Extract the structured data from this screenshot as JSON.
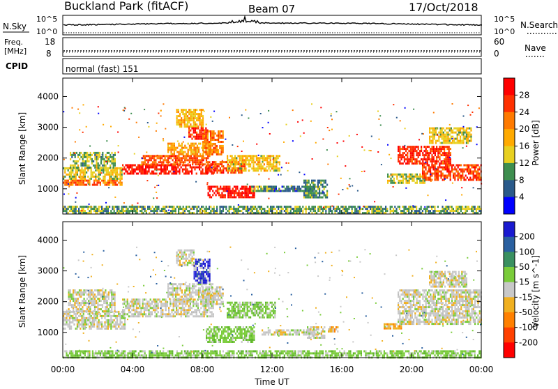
{
  "header": {
    "station": "Buckland Park (fitACF)",
    "beam": "Beam 07",
    "date": "17/Oct/2018"
  },
  "strips": {
    "nsky_label": "N.Sky",
    "nsky_ticks": [
      "10^5",
      "10^0"
    ],
    "nsearch_label": "N.Search",
    "nsearch_ticks": [
      "10^5",
      "10^0"
    ],
    "freq_label_line1": "Freq.",
    "freq_label_line2": "[MHz]",
    "freq_ticks": [
      "18",
      "8"
    ],
    "nave_label": "Nave",
    "nave_ticks": [
      "60",
      "0"
    ],
    "cpid_label": "CPID",
    "cpid_value": "normal (fast) 151"
  },
  "chart_data": [
    {
      "type": "heatmap",
      "name": "power",
      "ylabel": "Slant Range [km]",
      "yticks": [
        "4000",
        "3000",
        "2000",
        "1000"
      ],
      "ylim": [
        180,
        4600
      ],
      "xlim": [
        0,
        24
      ],
      "colorbar_label": "Power [dB]",
      "colorbar_ticks": [
        "28",
        "24",
        "20",
        "16",
        "12",
        "8",
        "4"
      ],
      "colorbar_colors": [
        "#ff0000",
        "#ff3000",
        "#ff7a00",
        "#ffaa00",
        "#e8d020",
        "#3e8e4f",
        "#2a5a8a",
        "#0000ff"
      ],
      "patches": [
        {
          "t0": 0.0,
          "t1": 3.6,
          "r0": 1100,
          "r1": 1300,
          "level": 0.75
        },
        {
          "t0": 0.0,
          "t1": 3.4,
          "r0": 1300,
          "r1": 1700,
          "level": 0.45
        },
        {
          "t0": 0.4,
          "t1": 3.0,
          "r0": 1700,
          "r1": 2200,
          "level": 0.35
        },
        {
          "t0": 3.4,
          "t1": 8.6,
          "r0": 1500,
          "r1": 1800,
          "level": 0.95
        },
        {
          "t0": 4.5,
          "t1": 8.4,
          "r0": 1800,
          "r1": 2100,
          "level": 0.8
        },
        {
          "t0": 6.0,
          "t1": 8.6,
          "r0": 2100,
          "r1": 2500,
          "level": 0.6
        },
        {
          "t0": 6.5,
          "t1": 8.0,
          "r0": 3000,
          "r1": 3600,
          "level": 0.55
        },
        {
          "t0": 7.2,
          "t1": 8.3,
          "r0": 2600,
          "r1": 3000,
          "level": 0.9
        },
        {
          "t0": 8.0,
          "t1": 9.2,
          "r0": 2100,
          "r1": 2900,
          "level": 0.7
        },
        {
          "t0": 8.2,
          "t1": 10.4,
          "r0": 1500,
          "r1": 1900,
          "level": 0.85
        },
        {
          "t0": 8.3,
          "t1": 11.0,
          "r0": 700,
          "r1": 1100,
          "level": 0.97
        },
        {
          "t0": 9.4,
          "t1": 12.4,
          "r0": 1600,
          "r1": 2100,
          "level": 0.5
        },
        {
          "t0": 10.8,
          "t1": 12.2,
          "r0": 900,
          "r1": 1100,
          "level": 0.3
        },
        {
          "t0": 11.4,
          "t1": 14.4,
          "r0": 950,
          "r1": 1100,
          "level": 0.18
        },
        {
          "t0": 13.8,
          "t1": 15.2,
          "r0": 700,
          "r1": 1300,
          "level": 0.25
        },
        {
          "t0": 18.6,
          "t1": 20.8,
          "r0": 1200,
          "r1": 1500,
          "level": 0.4
        },
        {
          "t0": 19.2,
          "t1": 22.2,
          "r0": 1800,
          "r1": 2400,
          "level": 0.9
        },
        {
          "t0": 20.6,
          "t1": 24.0,
          "r0": 1300,
          "r1": 1800,
          "level": 0.85
        },
        {
          "t0": 21.0,
          "t1": 23.4,
          "r0": 2500,
          "r1": 3000,
          "level": 0.45
        },
        {
          "t0": 0.0,
          "t1": 24.0,
          "r0": 200,
          "r1": 450,
          "level": 0.3
        }
      ]
    },
    {
      "type": "heatmap",
      "name": "velocity",
      "ylabel": "Slant Range [km]",
      "yticks": [
        "4000",
        "3000",
        "2000",
        "1000"
      ],
      "ylim": [
        180,
        4600
      ],
      "xlim": [
        0,
        24
      ],
      "xticks": [
        "00:00",
        "04:00",
        "08:00",
        "12:00",
        "16:00",
        "20:00",
        "00:00"
      ],
      "xlabel": "Time UT",
      "colorbar_label": "Velocity [m s^-1]",
      "colorbar_ticks": [
        "200",
        "100",
        "50",
        "15",
        "-15",
        "-50",
        "-100",
        "-200"
      ],
      "colorbar_colors": [
        "#1a1ad0",
        "#2a60a0",
        "#3a9060",
        "#7acc3a",
        "#c8c8c8",
        "#f0b020",
        "#ff8000",
        "#ff4000",
        "#ff0000"
      ],
      "patches": [
        {
          "t0": 0.0,
          "t1": 3.6,
          "r0": 1100,
          "r1": 1700,
          "v": "gray"
        },
        {
          "t0": 0.3,
          "t1": 3.0,
          "r0": 1700,
          "r1": 2400,
          "v": "gray"
        },
        {
          "t0": 3.4,
          "t1": 8.6,
          "r0": 1500,
          "r1": 2100,
          "v": "gray"
        },
        {
          "t0": 6.0,
          "t1": 8.6,
          "r0": 2100,
          "r1": 2600,
          "v": "gray"
        },
        {
          "t0": 6.5,
          "t1": 7.5,
          "r0": 3200,
          "r1": 3700,
          "v": "gray"
        },
        {
          "t0": 7.5,
          "t1": 8.4,
          "r0": 2600,
          "r1": 3400,
          "v": "blue"
        },
        {
          "t0": 8.0,
          "t1": 9.2,
          "r0": 1900,
          "r1": 2500,
          "v": "gray"
        },
        {
          "t0": 8.2,
          "t1": 11.0,
          "r0": 700,
          "r1": 1200,
          "v": "green"
        },
        {
          "t0": 9.4,
          "t1": 12.2,
          "r0": 1500,
          "r1": 2000,
          "v": "green"
        },
        {
          "t0": 11.4,
          "t1": 14.6,
          "r0": 900,
          "r1": 1100,
          "v": "gray"
        },
        {
          "t0": 14.0,
          "t1": 15.0,
          "r0": 800,
          "r1": 1200,
          "v": "gray"
        },
        {
          "t0": 15.2,
          "t1": 15.8,
          "r0": 1000,
          "r1": 1200,
          "v": "orange"
        },
        {
          "t0": 18.4,
          "t1": 19.4,
          "r0": 1100,
          "r1": 1300,
          "v": "orange"
        },
        {
          "t0": 19.2,
          "t1": 24.0,
          "r0": 1300,
          "r1": 2400,
          "v": "gray"
        },
        {
          "t0": 21.0,
          "t1": 23.2,
          "r0": 2500,
          "r1": 3000,
          "v": "gray"
        },
        {
          "t0": 0.0,
          "t1": 24.0,
          "r0": 200,
          "r1": 420,
          "v": "green"
        }
      ]
    }
  ]
}
